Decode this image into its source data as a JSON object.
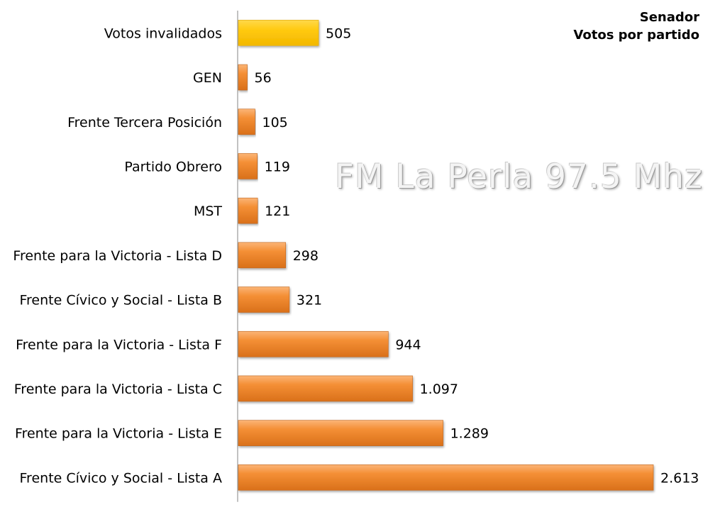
{
  "chart_data": {
    "type": "bar",
    "orientation": "horizontal",
    "title": "Senador",
    "subtitle": "Votos por partido",
    "watermark": "FM La Perla 97.5 Mhz",
    "categories": [
      "Votos invalidados",
      "GEN",
      "Frente Tercera Posición",
      "Partido Obrero",
      "MST",
      "Frente para la Victoria - Lista D",
      "Frente Cívico y Social - Lista B",
      "Frente para la Victoria - Lista F",
      "Frente para la Victoria - Lista C",
      "Frente para la Victoria - Lista E",
      "Frente Cívico y Social - Lista A"
    ],
    "values": [
      505,
      56,
      105,
      119,
      121,
      298,
      321,
      944,
      1097,
      1289,
      2613
    ],
    "value_labels": [
      "505",
      "56",
      "105",
      "119",
      "121",
      "298",
      "321",
      "944",
      "1.097",
      "1.289",
      "2.613"
    ],
    "bar_colors": [
      "#FFC90E",
      "#F28A2E",
      "#F28A2E",
      "#F28A2E",
      "#F28A2E",
      "#F28A2E",
      "#F28A2E",
      "#F28A2E",
      "#F28A2E",
      "#F28A2E",
      "#F28A2E"
    ],
    "xlim": [
      0,
      2613
    ],
    "grid": false,
    "legend": "none"
  }
}
